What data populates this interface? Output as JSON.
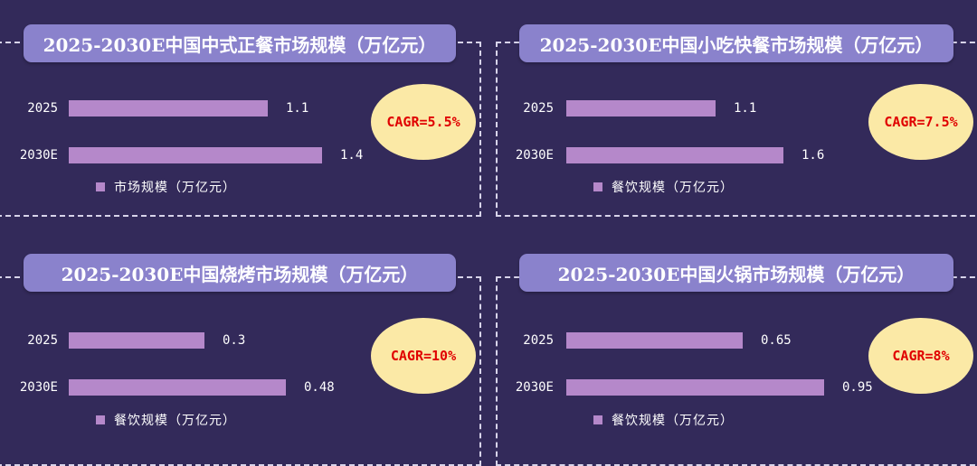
{
  "colors": {
    "background": "#332a5a",
    "title_bg": "#8a82cc",
    "bar": "#b588ca",
    "cagr_bg": "#fbe9a6",
    "cagr_text": "#e00000"
  },
  "chart_data": [
    {
      "type": "bar",
      "orientation": "horizontal",
      "title": "2025-2030E中国中式正餐市场规模（万亿元）",
      "categories": [
        "2025",
        "2030E"
      ],
      "series": [
        {
          "name": "市场规模（万亿元）",
          "values": [
            1.1,
            1.4
          ]
        }
      ],
      "data_labels": [
        "1.1",
        "1.4"
      ],
      "annotation": "CAGR=5.5%",
      "legend_position": "bottom-left"
    },
    {
      "type": "bar",
      "orientation": "horizontal",
      "title": "2025-2030E中国小吃快餐市场规模（万亿元）",
      "categories": [
        "2025",
        "2030E"
      ],
      "series": [
        {
          "name": "餐饮规模（万亿元）",
          "values": [
            1.1,
            1.6
          ]
        }
      ],
      "data_labels": [
        "1.1",
        "1.6"
      ],
      "annotation": "CAGR=7.5%",
      "legend_position": "bottom-left"
    },
    {
      "type": "bar",
      "orientation": "horizontal",
      "title": "2025-2030E中国烧烤市场规模（万亿元）",
      "categories": [
        "2025",
        "2030E"
      ],
      "series": [
        {
          "name": "餐饮规模（万亿元）",
          "values": [
            0.3,
            0.48
          ]
        }
      ],
      "data_labels": [
        "0.3",
        "0.48"
      ],
      "annotation": "CAGR=10%",
      "legend_position": "bottom-left"
    },
    {
      "type": "bar",
      "orientation": "horizontal",
      "title": "2025-2030E中国火锅市场规模（万亿元）",
      "categories": [
        "2025",
        "2030E"
      ],
      "series": [
        {
          "name": "餐饮规模（万亿元）",
          "values": [
            0.65,
            0.95
          ]
        }
      ],
      "data_labels": [
        "0.65",
        "0.95"
      ],
      "annotation": "CAGR=8%",
      "legend_position": "bottom-left"
    }
  ]
}
